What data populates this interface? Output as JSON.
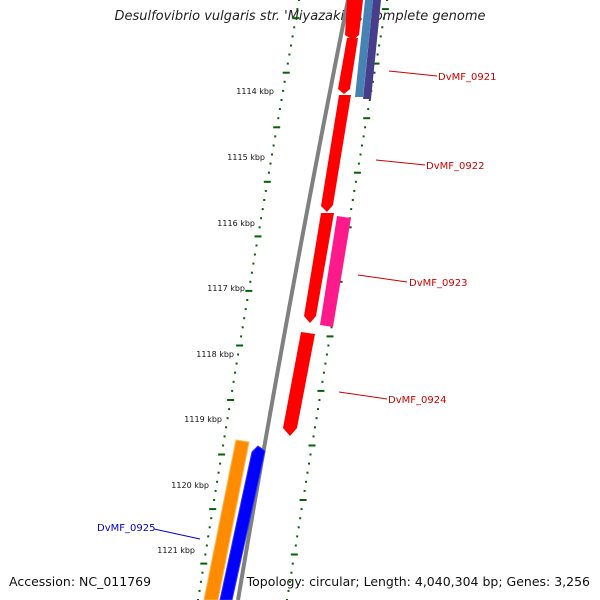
{
  "title": "Desulfovibrio vulgaris str. 'Miyazaki F', complete genome",
  "footer": {
    "accession": "Accession: NC_011769",
    "summary": "Topology: circular; Length: 4,040,304 bp; Genes: 3,256"
  },
  "colors": {
    "red": "#ff0000",
    "pink": "#ff1a8c",
    "orange": "#ff8c00",
    "blue": "#0000ff",
    "steelblue": "#4682b4",
    "darkslateblue": "#483d8b",
    "tick_green": "#006400",
    "backbone_gray": "#808080",
    "label_red": "#cc0000",
    "label_blue": "#0000cc"
  },
  "kbp_ticks": [
    "1114 kbp",
    "1115 kbp",
    "1116 kbp",
    "1117 kbp",
    "1118 kbp",
    "1119 kbp",
    "1120 kbp",
    "1121 kbp"
  ],
  "gene_labels": [
    {
      "text": "DvMF_0921",
      "color": "#cc0000"
    },
    {
      "text": "DvMF_0922",
      "color": "#cc0000"
    },
    {
      "text": "DvMF_0923",
      "color": "#cc0000"
    },
    {
      "text": "DvMF_0924",
      "color": "#cc0000"
    },
    {
      "text": "DvMF_0925",
      "color": "#0000cc"
    }
  ]
}
